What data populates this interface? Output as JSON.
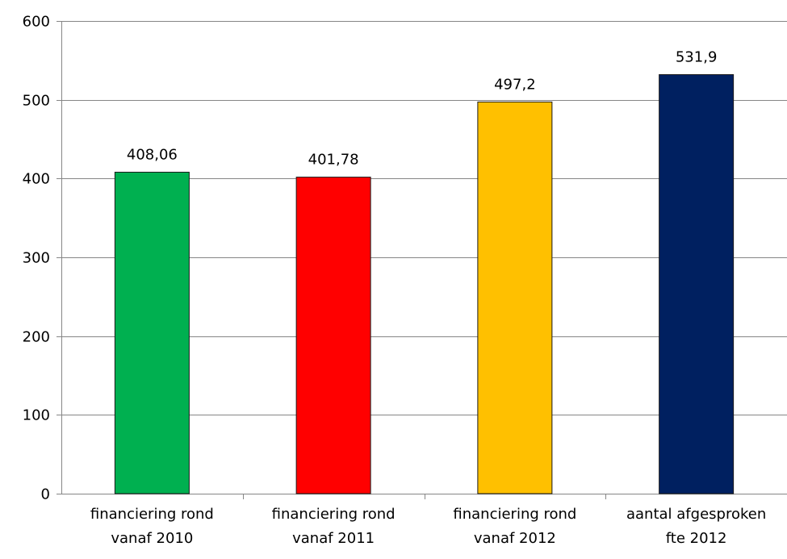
{
  "chart_data": {
    "type": "bar",
    "categories": [
      [
        "financiering rond",
        "vanaf 2010"
      ],
      [
        "financiering rond",
        "vanaf 2011"
      ],
      [
        "financiering rond",
        "vanaf 2012"
      ],
      [
        "aantal afgesproken",
        "fte 2012"
      ]
    ],
    "values": [
      408.06,
      401.78,
      497.2,
      531.9
    ],
    "data_labels": [
      "408,06",
      "401,78",
      "497,2",
      "531,9"
    ],
    "colors": [
      "#00b050",
      "#ff0000",
      "#ffc000",
      "#002060"
    ],
    "ylim": [
      0,
      600
    ],
    "yticks": [
      0,
      100,
      200,
      300,
      400,
      500,
      600
    ],
    "grid": true,
    "legend": "none",
    "title": "",
    "xlabel": "",
    "ylabel": ""
  }
}
